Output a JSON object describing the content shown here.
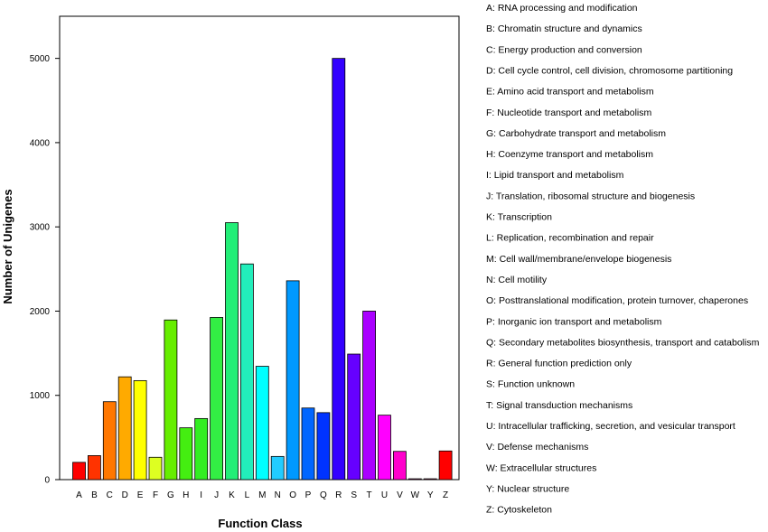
{
  "chart_data": {
    "type": "bar",
    "xlabel": "Function Class",
    "ylabel": "Number of Unigenes",
    "ylim": [
      0,
      5500
    ],
    "yticks": [
      0,
      1000,
      2000,
      3000,
      4000,
      5000
    ],
    "categories": [
      "A",
      "B",
      "C",
      "D",
      "E",
      "F",
      "G",
      "H",
      "I",
      "J",
      "K",
      "L",
      "M",
      "N",
      "O",
      "P",
      "Q",
      "R",
      "S",
      "T",
      "U",
      "V",
      "W",
      "Y",
      "Z"
    ],
    "values": [
      205,
      285,
      925,
      1220,
      1175,
      265,
      1895,
      615,
      725,
      1925,
      3050,
      2560,
      1345,
      275,
      2360,
      850,
      795,
      5000,
      1490,
      2000,
      765,
      335,
      10,
      10,
      340
    ],
    "colors": [
      "#ff0000",
      "#ff3300",
      "#ff7700",
      "#ffaa00",
      "#ffff00",
      "#ddff22",
      "#66ee00",
      "#44ee11",
      "#33ee22",
      "#33ee44",
      "#22ee77",
      "#22eebb",
      "#00ffff",
      "#22ccff",
      "#0099ff",
      "#0066ff",
      "#0033ff",
      "#3300ff",
      "#6600ff",
      "#aa00ff",
      "#ff00ff",
      "#ff00cc",
      "#ff0099",
      "#ff0066",
      "#ff0000"
    ],
    "legend": [
      "A: RNA processing and modification",
      "B: Chromatin structure and dynamics",
      "C: Energy production and conversion",
      "D: Cell cycle control, cell division, chromosome partitioning",
      "E: Amino acid transport and metabolism",
      "F: Nucleotide transport and metabolism",
      "G: Carbohydrate transport and metabolism",
      "H: Coenzyme transport and metabolism",
      "I: Lipid transport and metabolism",
      "J: Translation, ribosomal structure and biogenesis",
      "K: Transcription",
      "L: Replication, recombination and repair",
      "M: Cell wall/membrane/envelope biogenesis",
      "N: Cell motility",
      "O: Posttranslational modification, protein turnover, chaperones",
      "P: Inorganic ion transport and metabolism",
      "Q: Secondary metabolites biosynthesis, transport and catabolism",
      "R: General function prediction only",
      "S: Function unknown",
      "T: Signal transduction mechanisms",
      "U: Intracellular trafficking, secretion, and vesicular transport",
      "V: Defense mechanisms",
      "W: Extracellular structures",
      "Y: Nuclear structure",
      "Z: Cytoskeleton"
    ]
  }
}
